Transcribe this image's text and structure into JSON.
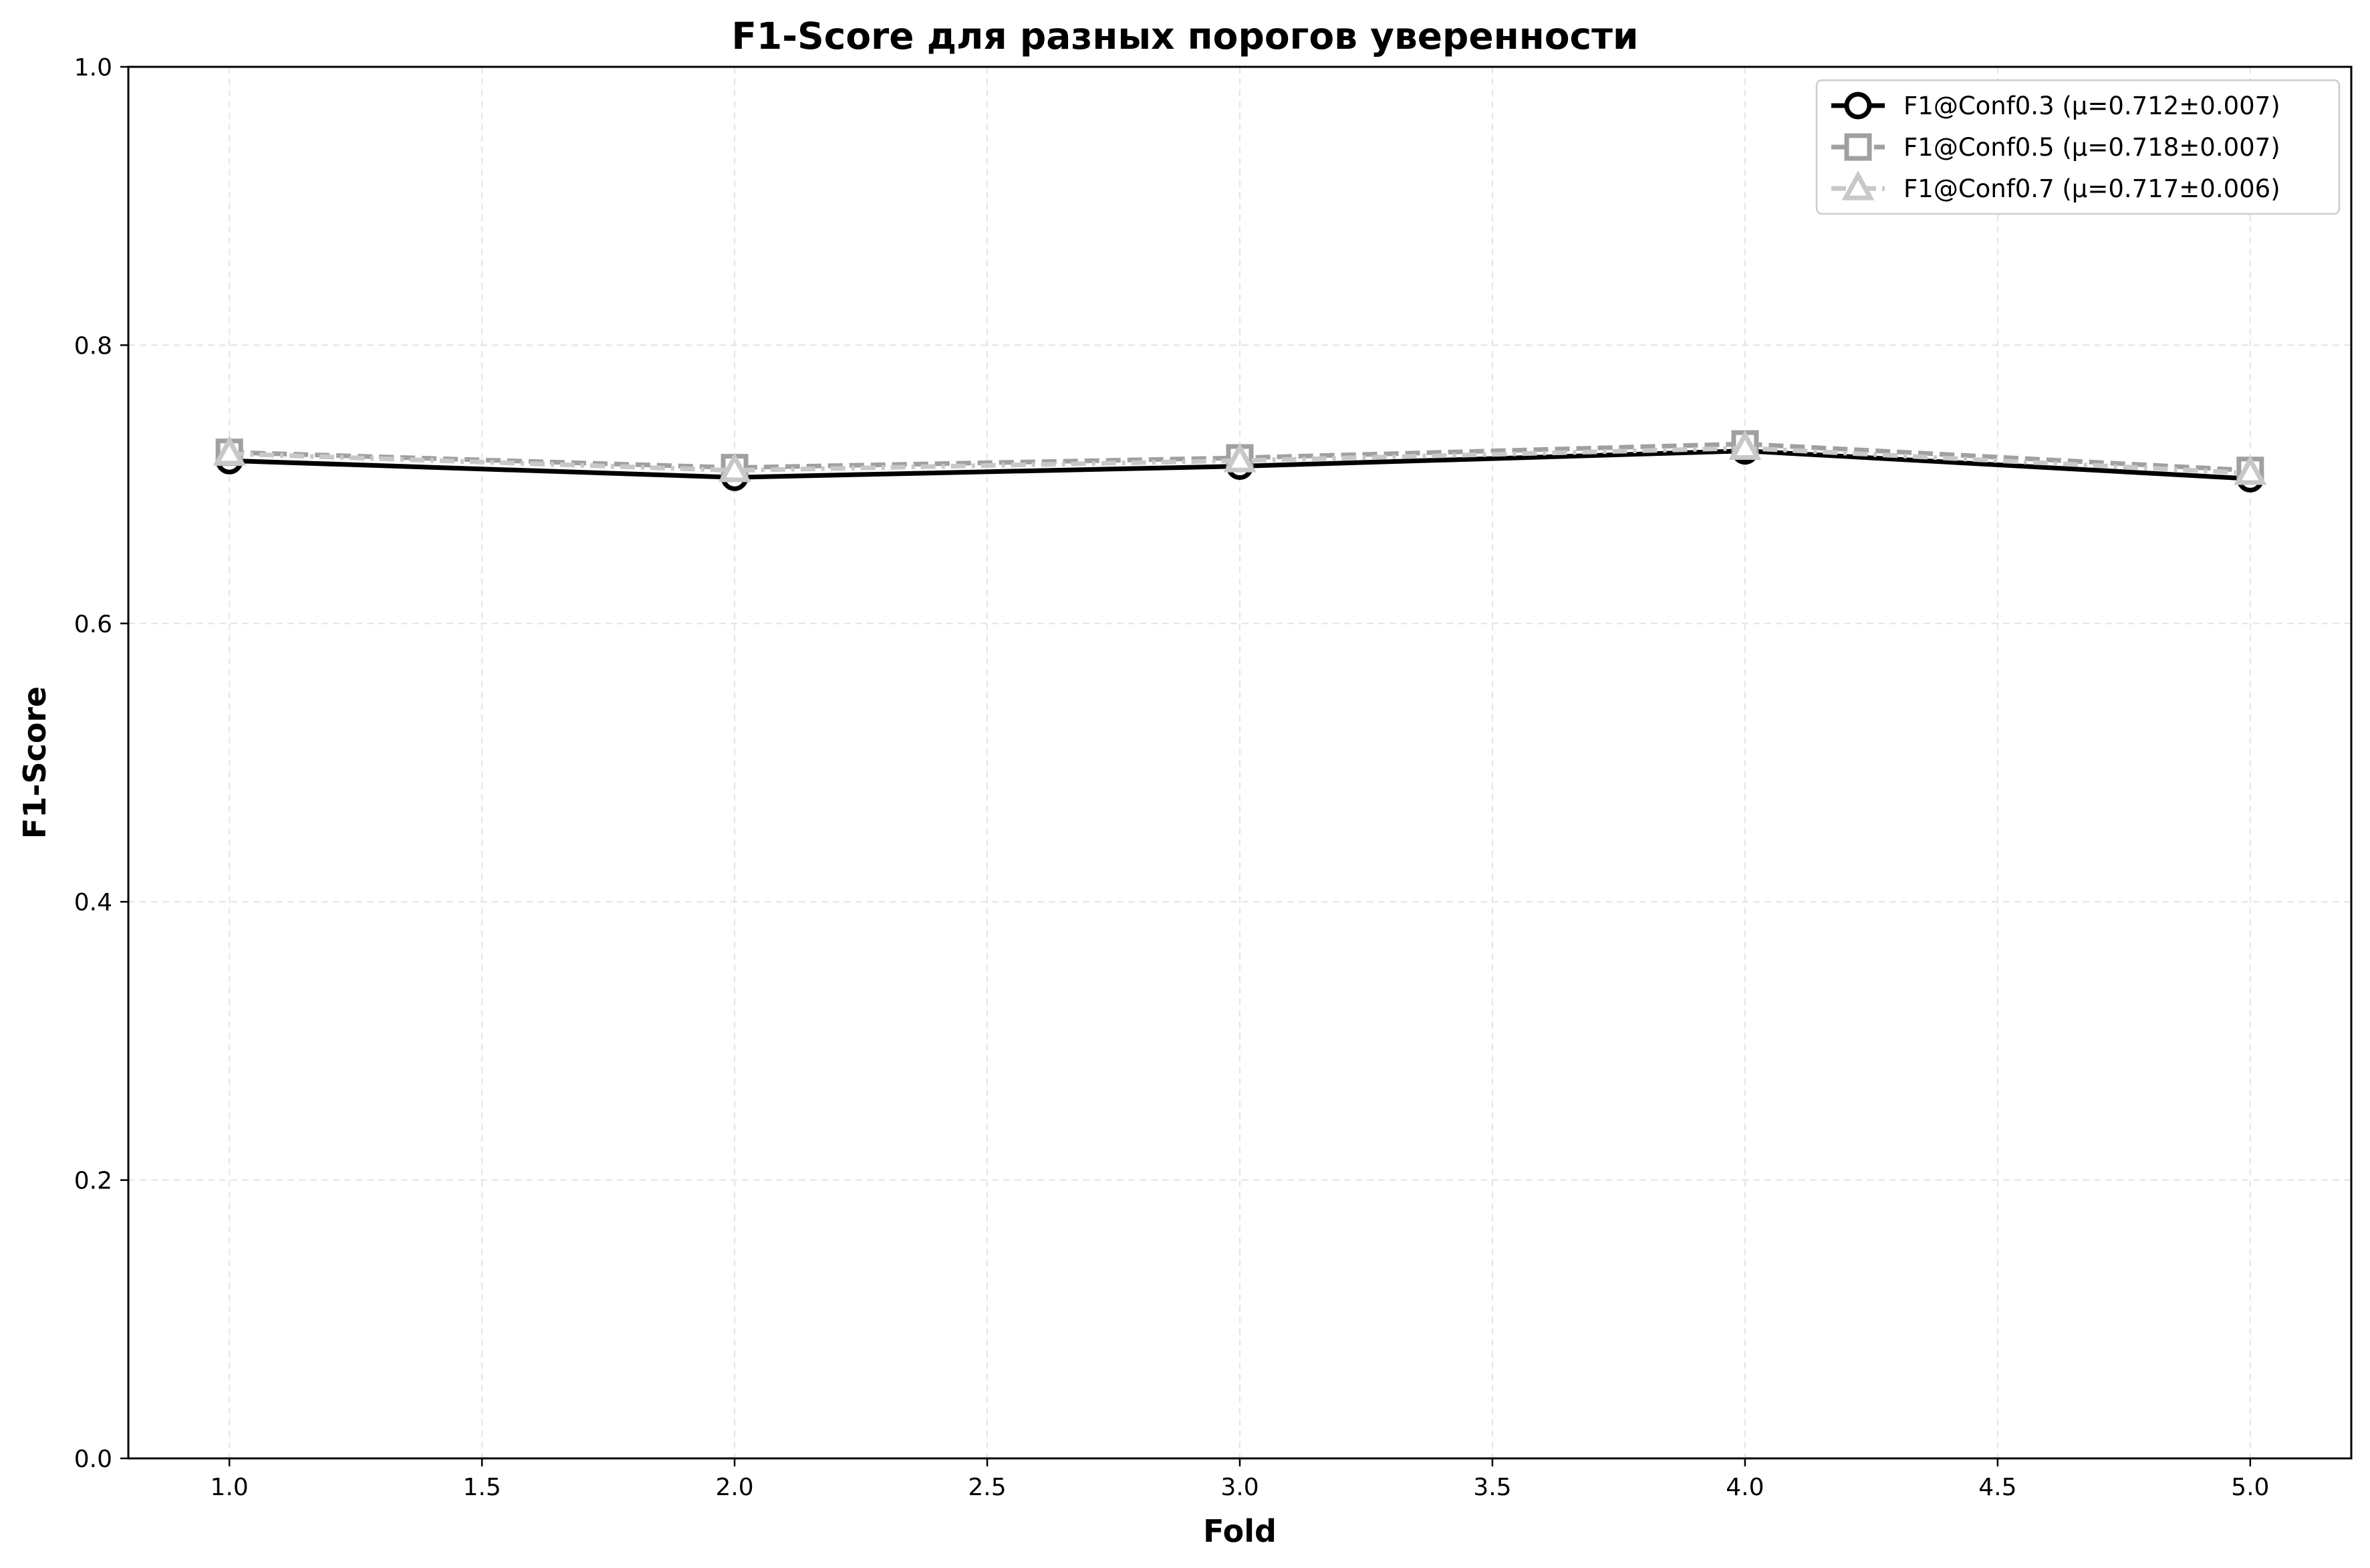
{
  "chart_data": {
    "type": "line",
    "title": "F1-Score для разных порогов уверенности",
    "xlabel": "Fold",
    "ylabel": "F1-Score",
    "xlim": [
      0.8,
      5.2
    ],
    "ylim": [
      0.0,
      1.0
    ],
    "xticks": [
      "1.0",
      "1.5",
      "2.0",
      "2.5",
      "3.0",
      "3.5",
      "4.0",
      "4.5",
      "5.0"
    ],
    "yticks": [
      "0.0",
      "0.2",
      "0.4",
      "0.6",
      "0.8",
      "1.0"
    ],
    "grid": true,
    "legend_position": "top-right",
    "x": [
      1,
      2,
      3,
      4,
      5
    ],
    "series": [
      {
        "name": "F1@Conf0.3 (μ=0.712±0.007)",
        "values": [
          0.717,
          0.705,
          0.713,
          0.724,
          0.704
        ],
        "color": "#000000",
        "marker": "circle",
        "linestyle": "solid"
      },
      {
        "name": "F1@Conf0.5 (μ=0.718±0.007)",
        "values": [
          0.723,
          0.712,
          0.719,
          0.729,
          0.71
        ],
        "color": "#a0a0a0",
        "marker": "square",
        "linestyle": "dashed"
      },
      {
        "name": "F1@Conf0.7 (μ=0.717±0.006)",
        "values": [
          0.722,
          0.71,
          0.717,
          0.726,
          0.708
        ],
        "color": "#c8c8c8",
        "marker": "triangle",
        "linestyle": "dashdot"
      }
    ]
  }
}
